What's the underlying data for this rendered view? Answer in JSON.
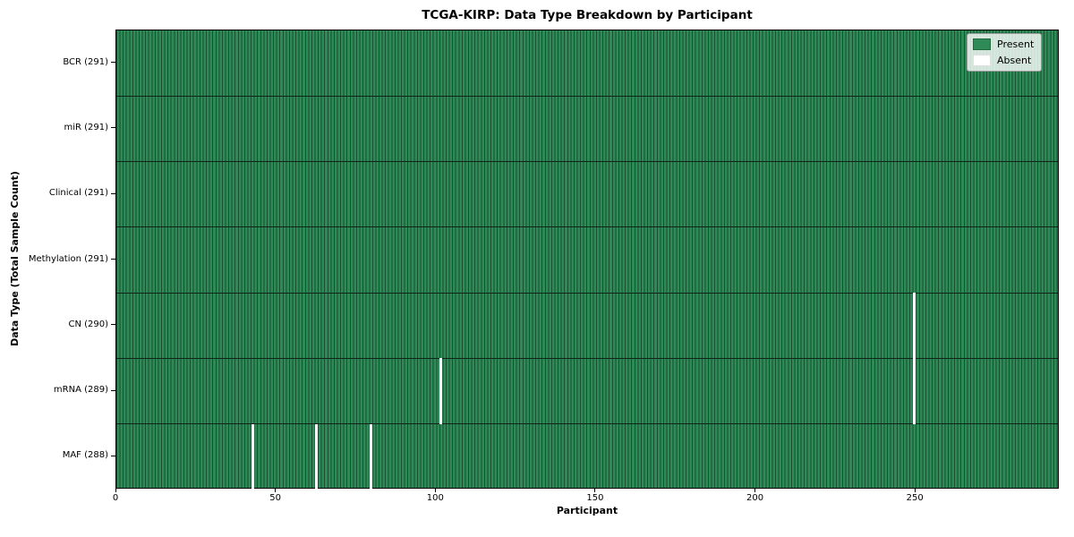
{
  "chart_data": {
    "type": "heatmap",
    "title": "TCGA-KIRP: Data Type Breakdown by Participant",
    "xlabel": "Participant",
    "ylabel": "Data Type (Total Sample Count)",
    "x_ticks": [
      0,
      50,
      100,
      150,
      200,
      250
    ],
    "xlim": [
      0,
      295
    ],
    "n_participants": 291,
    "grid": false,
    "legend_position": "upper right",
    "legend_items": [
      {
        "label": "Present",
        "color": "#2e8b57"
      },
      {
        "label": "Absent",
        "color": "#ffffff"
      }
    ],
    "colors": {
      "present": "#2e8b57",
      "absent": "#ffffff",
      "cell_edge": "#1b4f32",
      "row_separator": "#0d2417",
      "plot_border": "#000000"
    },
    "rows": [
      {
        "label": "BCR (291)",
        "data_type": "BCR",
        "sample_count": 291,
        "absent_participants": []
      },
      {
        "label": "miR (291)",
        "data_type": "miR",
        "sample_count": 291,
        "absent_participants": []
      },
      {
        "label": "Clinical (291)",
        "data_type": "Clinical",
        "sample_count": 291,
        "absent_participants": []
      },
      {
        "label": "Methylation (291)",
        "data_type": "Methylation",
        "sample_count": 291,
        "absent_participants": []
      },
      {
        "label": "CN (290)",
        "data_type": "CN",
        "sample_count": 290,
        "absent_participants": [
          249
        ]
      },
      {
        "label": "mRNA (289)",
        "data_type": "mRNA",
        "sample_count": 289,
        "absent_participants": [
          101,
          249
        ]
      },
      {
        "label": "MAF (288)",
        "data_type": "MAF",
        "sample_count": 288,
        "absent_participants": [
          42,
          62,
          79
        ]
      }
    ]
  }
}
